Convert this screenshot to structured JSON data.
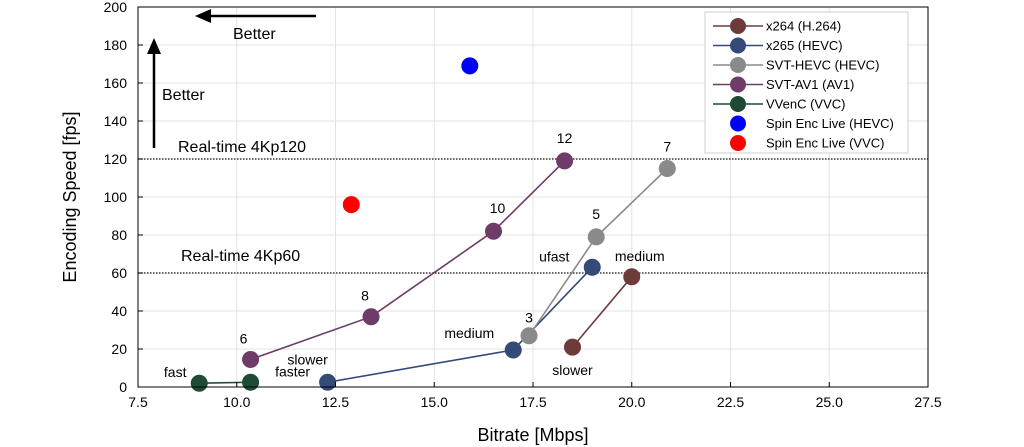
{
  "chart_data": {
    "type": "scatter",
    "title": "",
    "xlabel": "Bitrate [Mbps]",
    "ylabel": "Encoding Speed [fps]",
    "xlim": [
      7.5,
      27.5
    ],
    "ylim": [
      0,
      200
    ],
    "xticks": [
      "7.5",
      "10.0",
      "12.5",
      "15.0",
      "17.5",
      "20.0",
      "22.5",
      "25.0",
      "27.5"
    ],
    "yticks": [
      "0",
      "20",
      "40",
      "60",
      "80",
      "100",
      "120",
      "140",
      "160",
      "180",
      "200"
    ],
    "grid": true,
    "legend_position": "top-right",
    "series": [
      {
        "name": "x264 (H.264)",
        "color": "#6e3b3b",
        "connected": true,
        "points": [
          {
            "x": 18.5,
            "y": 21,
            "label": "slower"
          },
          {
            "x": 20.0,
            "y": 58,
            "label": "medium"
          }
        ]
      },
      {
        "name": "x265 (HEVC)",
        "color": "#344a77",
        "connected": true,
        "points": [
          {
            "x": 12.3,
            "y": 2.5,
            "label": "slower"
          },
          {
            "x": 17.0,
            "y": 19.5,
            "label": "medium"
          },
          {
            "x": 19.0,
            "y": 63,
            "label": "ufast"
          }
        ]
      },
      {
        "name": "SVT-HEVC (HEVC)",
        "color": "#8a8a8a",
        "connected": true,
        "points": [
          {
            "x": 17.4,
            "y": 27,
            "label": "3"
          },
          {
            "x": 19.1,
            "y": 79,
            "label": "5"
          },
          {
            "x": 20.9,
            "y": 115,
            "label": "7"
          }
        ]
      },
      {
        "name": "SVT-AV1 (AV1)",
        "color": "#6f3b68",
        "connected": true,
        "points": [
          {
            "x": 10.35,
            "y": 14.5,
            "label": "6"
          },
          {
            "x": 13.4,
            "y": 37,
            "label": "8"
          },
          {
            "x": 16.5,
            "y": 82,
            "label": "10"
          },
          {
            "x": 18.3,
            "y": 119,
            "label": "12"
          }
        ]
      },
      {
        "name": "VVenC (VVC)",
        "color": "#1f4a36",
        "connected": true,
        "points": [
          {
            "x": 9.05,
            "y": 2,
            "label": "fast"
          },
          {
            "x": 10.35,
            "y": 2.5,
            "label": "faster"
          }
        ]
      },
      {
        "name": "Spin Enc Live (HEVC)",
        "color": "#0000ff",
        "connected": false,
        "points": [
          {
            "x": 15.9,
            "y": 169,
            "label": ""
          }
        ]
      },
      {
        "name": "Spin Enc Live (VVC)",
        "color": "#ff0000",
        "connected": false,
        "points": [
          {
            "x": 12.9,
            "y": 96,
            "label": ""
          }
        ]
      }
    ],
    "reference_lines": [
      {
        "y": 120,
        "label": "Real-time 4Kp120"
      },
      {
        "y": 60,
        "label": "Real-time 4Kp60"
      }
    ],
    "annotations": {
      "better_x": "Better",
      "better_y": "Better"
    }
  }
}
